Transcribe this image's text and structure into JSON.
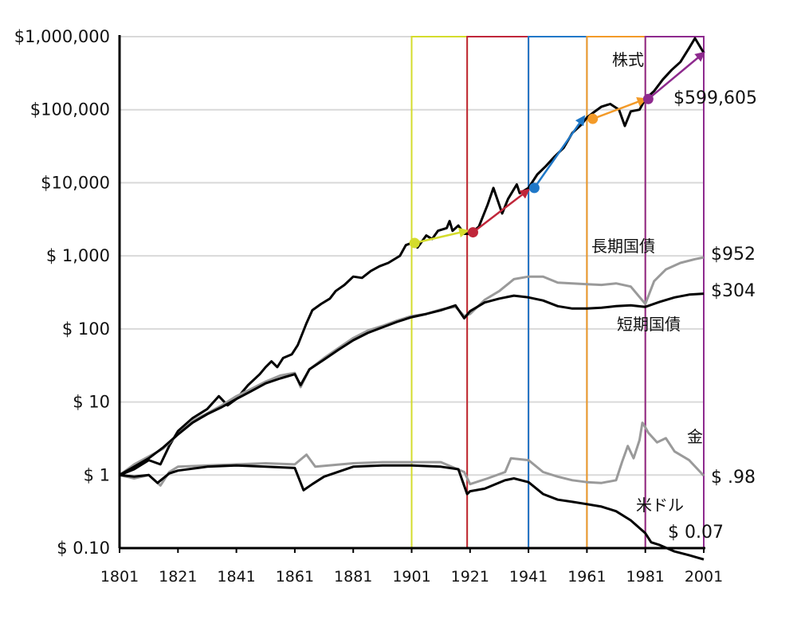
{
  "chart_data": {
    "type": "line",
    "title": "",
    "xlabel": "",
    "ylabel": "",
    "xlim": [
      1801,
      2001
    ],
    "ylim": [
      0.1,
      1000000
    ],
    "yscale": "log",
    "grid": true,
    "x_ticks": [
      1801,
      1821,
      1841,
      1861,
      1881,
      1901,
      1921,
      1941,
      1961,
      1981,
      2001
    ],
    "x_tick_labels": [
      "1801",
      "1821",
      "1841",
      "1861",
      "1881",
      "1901",
      "1921",
      "1941",
      "1961",
      "1981",
      "2001"
    ],
    "y_ticks": [
      0.1,
      1,
      10,
      100,
      1000,
      10000,
      100000,
      1000000
    ],
    "y_tick_labels": [
      "$ 0.10",
      "$ 1",
      "$ 10",
      "$ 100",
      "$ 1,000",
      "$10,000",
      "$100,000",
      "$1,000,000"
    ],
    "series": [
      {
        "name": "株式",
        "end_label": "$599,605",
        "color": "#000000",
        "points": [
          [
            1801,
            1
          ],
          [
            1806,
            1.2
          ],
          [
            1811,
            1.6
          ],
          [
            1815,
            1.4
          ],
          [
            1818,
            2.5
          ],
          [
            1821,
            4
          ],
          [
            1826,
            6
          ],
          [
            1831,
            8
          ],
          [
            1835,
            12
          ],
          [
            1838,
            9
          ],
          [
            1841,
            11
          ],
          [
            1845,
            17
          ],
          [
            1849,
            24
          ],
          [
            1851,
            30
          ],
          [
            1853,
            36
          ],
          [
            1855,
            30
          ],
          [
            1857,
            40
          ],
          [
            1860,
            45
          ],
          [
            1862,
            60
          ],
          [
            1865,
            120
          ],
          [
            1867,
            180
          ],
          [
            1870,
            220
          ],
          [
            1873,
            260
          ],
          [
            1875,
            330
          ],
          [
            1878,
            400
          ],
          [
            1881,
            520
          ],
          [
            1884,
            500
          ],
          [
            1887,
            620
          ],
          [
            1890,
            720
          ],
          [
            1893,
            800
          ],
          [
            1897,
            1000
          ],
          [
            1899,
            1400
          ],
          [
            1901,
            1500
          ],
          [
            1903,
            1300
          ],
          [
            1906,
            1900
          ],
          [
            1908,
            1700
          ],
          [
            1910,
            2200
          ],
          [
            1913,
            2400
          ],
          [
            1914,
            3000
          ],
          [
            1915,
            2200
          ],
          [
            1917,
            2600
          ],
          [
            1919,
            2000
          ],
          [
            1921,
            2000
          ],
          [
            1924,
            2500
          ],
          [
            1927,
            5000
          ],
          [
            1929,
            8500
          ],
          [
            1932,
            3800
          ],
          [
            1934,
            6000
          ],
          [
            1937,
            9500
          ],
          [
            1938,
            7200
          ],
          [
            1941,
            8500
          ],
          [
            1944,
            13000
          ],
          [
            1947,
            17000
          ],
          [
            1950,
            23000
          ],
          [
            1953,
            30000
          ],
          [
            1956,
            48000
          ],
          [
            1959,
            62000
          ],
          [
            1961,
            78000
          ],
          [
            1963,
            90000
          ],
          [
            1966,
            110000
          ],
          [
            1969,
            120000
          ],
          [
            1972,
            100000
          ],
          [
            1974,
            60000
          ],
          [
            1976,
            95000
          ],
          [
            1979,
            100000
          ],
          [
            1981,
            140000
          ],
          [
            1984,
            180000
          ],
          [
            1987,
            260000
          ],
          [
            1990,
            350000
          ],
          [
            1993,
            450000
          ],
          [
            1996,
            700000
          ],
          [
            1998,
            950000
          ],
          [
            2001,
            599605
          ]
        ]
      },
      {
        "name": "長期国債",
        "end_label": "$952",
        "color": "#9a9a9a",
        "points": [
          [
            1801,
            1
          ],
          [
            1806,
            1.4
          ],
          [
            1811,
            1.8
          ],
          [
            1816,
            2.3
          ],
          [
            1821,
            3.6
          ],
          [
            1826,
            5.5
          ],
          [
            1831,
            7
          ],
          [
            1836,
            9
          ],
          [
            1841,
            12
          ],
          [
            1846,
            15
          ],
          [
            1851,
            19
          ],
          [
            1856,
            23
          ],
          [
            1861,
            25
          ],
          [
            1863,
            16
          ],
          [
            1866,
            28
          ],
          [
            1871,
            40
          ],
          [
            1876,
            55
          ],
          [
            1881,
            75
          ],
          [
            1886,
            95
          ],
          [
            1891,
            110
          ],
          [
            1896,
            130
          ],
          [
            1901,
            150
          ],
          [
            1906,
            160
          ],
          [
            1911,
            185
          ],
          [
            1916,
            200
          ],
          [
            1919,
            150
          ],
          [
            1921,
            160
          ],
          [
            1926,
            250
          ],
          [
            1931,
            330
          ],
          [
            1936,
            480
          ],
          [
            1941,
            520
          ],
          [
            1946,
            520
          ],
          [
            1951,
            430
          ],
          [
            1956,
            420
          ],
          [
            1961,
            410
          ],
          [
            1966,
            400
          ],
          [
            1971,
            420
          ],
          [
            1976,
            380
          ],
          [
            1981,
            220
          ],
          [
            1984,
            450
          ],
          [
            1988,
            650
          ],
          [
            1993,
            800
          ],
          [
            1998,
            900
          ],
          [
            2001,
            952
          ]
        ]
      },
      {
        "name": "短期国債",
        "end_label": "$304",
        "color": "#000000",
        "points": [
          [
            1801,
            1
          ],
          [
            1806,
            1.3
          ],
          [
            1811,
            1.7
          ],
          [
            1816,
            2.4
          ],
          [
            1821,
            3.6
          ],
          [
            1826,
            5.2
          ],
          [
            1831,
            6.8
          ],
          [
            1836,
            8.5
          ],
          [
            1841,
            11
          ],
          [
            1846,
            14
          ],
          [
            1851,
            18
          ],
          [
            1856,
            21
          ],
          [
            1861,
            24
          ],
          [
            1863,
            17
          ],
          [
            1866,
            28
          ],
          [
            1871,
            38
          ],
          [
            1876,
            52
          ],
          [
            1881,
            70
          ],
          [
            1886,
            88
          ],
          [
            1891,
            105
          ],
          [
            1896,
            125
          ],
          [
            1901,
            145
          ],
          [
            1906,
            160
          ],
          [
            1911,
            180
          ],
          [
            1916,
            210
          ],
          [
            1919,
            140
          ],
          [
            1921,
            175
          ],
          [
            1926,
            230
          ],
          [
            1931,
            260
          ],
          [
            1936,
            285
          ],
          [
            1941,
            270
          ],
          [
            1946,
            245
          ],
          [
            1951,
            205
          ],
          [
            1956,
            190
          ],
          [
            1961,
            190
          ],
          [
            1966,
            195
          ],
          [
            1971,
            205
          ],
          [
            1976,
            210
          ],
          [
            1981,
            200
          ],
          [
            1986,
            235
          ],
          [
            1991,
            270
          ],
          [
            1996,
            295
          ],
          [
            2001,
            304
          ]
        ]
      },
      {
        "name": "金",
        "end_label": "$ .98",
        "color": "#9a9a9a",
        "points": [
          [
            1801,
            1
          ],
          [
            1806,
            0.9
          ],
          [
            1811,
            1
          ],
          [
            1815,
            0.72
          ],
          [
            1818,
            1.1
          ],
          [
            1821,
            1.3
          ],
          [
            1831,
            1.35
          ],
          [
            1841,
            1.4
          ],
          [
            1851,
            1.45
          ],
          [
            1861,
            1.4
          ],
          [
            1865,
            1.9
          ],
          [
            1868,
            1.3
          ],
          [
            1881,
            1.45
          ],
          [
            1891,
            1.5
          ],
          [
            1901,
            1.5
          ],
          [
            1911,
            1.5
          ],
          [
            1919,
            1.1
          ],
          [
            1921,
            0.75
          ],
          [
            1927,
            0.9
          ],
          [
            1933,
            1.1
          ],
          [
            1935,
            1.7
          ],
          [
            1941,
            1.6
          ],
          [
            1946,
            1.1
          ],
          [
            1951,
            0.95
          ],
          [
            1956,
            0.85
          ],
          [
            1961,
            0.8
          ],
          [
            1966,
            0.78
          ],
          [
            1971,
            0.85
          ],
          [
            1973,
            1.5
          ],
          [
            1975,
            2.5
          ],
          [
            1977,
            1.7
          ],
          [
            1979,
            3
          ],
          [
            1980,
            5.2
          ],
          [
            1981,
            4.5
          ],
          [
            1982,
            3.8
          ],
          [
            1985,
            2.8
          ],
          [
            1988,
            3.2
          ],
          [
            1991,
            2.1
          ],
          [
            1996,
            1.6
          ],
          [
            2001,
            0.98
          ]
        ]
      },
      {
        "name": "米ドル",
        "end_label": "$ 0.07",
        "color": "#000000",
        "points": [
          [
            1801,
            1
          ],
          [
            1806,
            0.95
          ],
          [
            1811,
            1
          ],
          [
            1814,
            0.78
          ],
          [
            1818,
            1.05
          ],
          [
            1821,
            1.15
          ],
          [
            1831,
            1.3
          ],
          [
            1841,
            1.35
          ],
          [
            1851,
            1.3
          ],
          [
            1861,
            1.25
          ],
          [
            1864,
            0.62
          ],
          [
            1867,
            0.75
          ],
          [
            1871,
            0.95
          ],
          [
            1881,
            1.3
          ],
          [
            1891,
            1.35
          ],
          [
            1901,
            1.35
          ],
          [
            1911,
            1.3
          ],
          [
            1917,
            1.2
          ],
          [
            1920,
            0.55
          ],
          [
            1921,
            0.6
          ],
          [
            1926,
            0.65
          ],
          [
            1933,
            0.85
          ],
          [
            1936,
            0.9
          ],
          [
            1941,
            0.8
          ],
          [
            1946,
            0.55
          ],
          [
            1951,
            0.46
          ],
          [
            1956,
            0.43
          ],
          [
            1961,
            0.4
          ],
          [
            1966,
            0.37
          ],
          [
            1971,
            0.32
          ],
          [
            1976,
            0.24
          ],
          [
            1981,
            0.16
          ],
          [
            1983,
            0.12
          ],
          [
            1986,
            0.11
          ],
          [
            1991,
            0.09
          ],
          [
            1996,
            0.08
          ],
          [
            2001,
            0.07
          ]
        ]
      }
    ],
    "period_boxes": [
      {
        "start": 1901,
        "end": 1920,
        "color": "#d4dc2c",
        "dot": [
          1902,
          1500
        ],
        "arrow_to": [
          1920,
          2200
        ]
      },
      {
        "start": 1920,
        "end": 1941,
        "color": "#c0263a",
        "dot": [
          1922,
          2100
        ],
        "arrow_to": [
          1941,
          8000
        ]
      },
      {
        "start": 1941,
        "end": 1961,
        "color": "#1f78c8",
        "dot": [
          1943,
          8500
        ],
        "arrow_to": [
          1960,
          80000
        ]
      },
      {
        "start": 1961,
        "end": 1981,
        "color": "#f39a28",
        "dot": [
          1963,
          75000
        ],
        "arrow_to": [
          1981,
          140000
        ]
      },
      {
        "start": 1981,
        "end": 2001,
        "color": "#8e2a8e",
        "dot": [
          1982,
          140000
        ],
        "arrow_to": [
          2001,
          599605
        ]
      }
    ]
  }
}
